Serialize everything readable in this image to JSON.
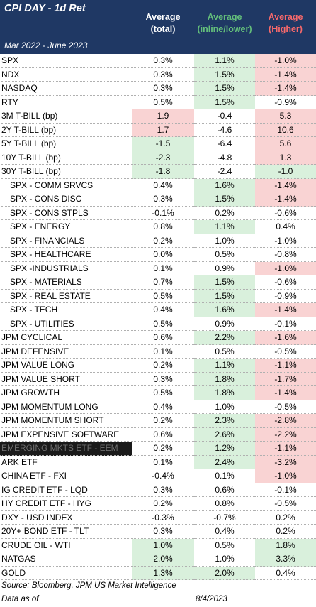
{
  "header": {
    "title": "CPI DAY - 1d Ret",
    "subtitle": "Mar 2022 - June 2023",
    "columns": [
      {
        "line1": "Average",
        "line2": "(total)"
      },
      {
        "line1": "Average",
        "line2": "(inline/lower)"
      },
      {
        "line1": "Average",
        "line2": "(Higher)"
      }
    ]
  },
  "colors": {
    "header_bg": "#1f3864",
    "green_fill": "#d9f0dc",
    "red_fill": "#f9d3d3",
    "green_text": "#63be7b",
    "red_text": "#f8696b"
  },
  "chart_data": {
    "type": "table",
    "title": "CPI DAY - 1d Ret",
    "subtitle": "Mar 2022 - June 2023",
    "columns": [
      "Average (total)",
      "Average (inline/lower)",
      "Average (Higher)"
    ],
    "rows": [
      {
        "label": "SPX",
        "total": "0.3%",
        "inline": "1.1%",
        "higher": "-1.0%",
        "fill": [
          "",
          "pos",
          "neg"
        ],
        "sub": false
      },
      {
        "label": "NDX",
        "total": "0.3%",
        "inline": "1.5%",
        "higher": "-1.4%",
        "fill": [
          "",
          "pos",
          "neg"
        ],
        "sub": false
      },
      {
        "label": "NASDAQ",
        "total": "0.3%",
        "inline": "1.5%",
        "higher": "-1.4%",
        "fill": [
          "",
          "pos",
          "neg"
        ],
        "sub": false
      },
      {
        "label": "RTY",
        "total": "0.5%",
        "inline": "1.5%",
        "higher": "-0.9%",
        "fill": [
          "",
          "pos",
          ""
        ],
        "sub": false
      },
      {
        "label": "3M T-BILL (bp)",
        "total": "1.9",
        "inline": "-0.4",
        "higher": "5.3",
        "fill": [
          "neg",
          "",
          "neg"
        ],
        "sub": false
      },
      {
        "label": "2Y T-BILL (bp)",
        "total": "1.7",
        "inline": "-4.6",
        "higher": "10.6",
        "fill": [
          "neg",
          "",
          "neg"
        ],
        "sub": false
      },
      {
        "label": "5Y T-BILL (bp)",
        "total": "-1.5",
        "inline": "-6.4",
        "higher": "5.6",
        "fill": [
          "pos",
          "",
          "neg"
        ],
        "sub": false
      },
      {
        "label": "10Y T-BILL (bp)",
        "total": "-2.3",
        "inline": "-4.8",
        "higher": "1.3",
        "fill": [
          "pos",
          "",
          "neg"
        ],
        "sub": false
      },
      {
        "label": "30Y T-BILL (bp)",
        "total": "-1.8",
        "inline": "-2.4",
        "higher": "-1.0",
        "fill": [
          "pos",
          "",
          "pos"
        ],
        "sub": false
      },
      {
        "label": "SPX - COMM SRVCS",
        "total": "0.4%",
        "inline": "1.6%",
        "higher": "-1.4%",
        "fill": [
          "",
          "pos",
          "neg"
        ],
        "sub": true
      },
      {
        "label": "SPX - CONS DISC",
        "total": "0.3%",
        "inline": "1.5%",
        "higher": "-1.4%",
        "fill": [
          "",
          "pos",
          "neg"
        ],
        "sub": true
      },
      {
        "label": "SPX - CONS STPLS",
        "total": "-0.1%",
        "inline": "0.2%",
        "higher": "-0.6%",
        "fill": [
          "",
          "",
          ""
        ],
        "sub": true
      },
      {
        "label": "SPX - ENERGY",
        "total": "0.8%",
        "inline": "1.1%",
        "higher": "0.4%",
        "fill": [
          "",
          "pos",
          ""
        ],
        "sub": true
      },
      {
        "label": "SPX - FINANCIALS",
        "total": "0.2%",
        "inline": "1.0%",
        "higher": "-1.0%",
        "fill": [
          "",
          "",
          ""
        ],
        "sub": true
      },
      {
        "label": "SPX - HEALTHCARE",
        "total": "0.0%",
        "inline": "0.5%",
        "higher": "-0.8%",
        "fill": [
          "",
          "",
          ""
        ],
        "sub": true
      },
      {
        "label": "SPX -INDUSTRIALS",
        "total": "0.1%",
        "inline": "0.9%",
        "higher": "-1.0%",
        "fill": [
          "",
          "",
          "neg"
        ],
        "sub": true
      },
      {
        "label": "SPX - MATERIALS",
        "total": "0.7%",
        "inline": "1.5%",
        "higher": "-0.6%",
        "fill": [
          "",
          "pos",
          ""
        ],
        "sub": true
      },
      {
        "label": "SPX - REAL ESTATE",
        "total": "0.5%",
        "inline": "1.5%",
        "higher": "-0.9%",
        "fill": [
          "",
          "pos",
          ""
        ],
        "sub": true
      },
      {
        "label": "SPX - TECH",
        "total": "0.4%",
        "inline": "1.6%",
        "higher": "-1.4%",
        "fill": [
          "",
          "pos",
          "neg"
        ],
        "sub": true
      },
      {
        "label": "SPX - UTILITIES",
        "total": "0.5%",
        "inline": "0.9%",
        "higher": "-0.1%",
        "fill": [
          "",
          "",
          ""
        ],
        "sub": true
      },
      {
        "label": "JPM CYCLICAL",
        "total": "0.6%",
        "inline": "2.2%",
        "higher": "-1.6%",
        "fill": [
          "",
          "pos",
          "neg"
        ],
        "sub": false
      },
      {
        "label": "JPM DEFENSIVE",
        "total": "0.1%",
        "inline": "0.5%",
        "higher": "-0.5%",
        "fill": [
          "",
          "",
          ""
        ],
        "sub": false
      },
      {
        "label": "JPM VALUE LONG",
        "total": "0.2%",
        "inline": "1.1%",
        "higher": "-1.1%",
        "fill": [
          "",
          "pos",
          "neg"
        ],
        "sub": false
      },
      {
        "label": "JPM VALUE SHORT",
        "total": "0.3%",
        "inline": "1.8%",
        "higher": "-1.7%",
        "fill": [
          "",
          "pos",
          "neg"
        ],
        "sub": false
      },
      {
        "label": "JPM GROWTH",
        "total": "0.5%",
        "inline": "1.8%",
        "higher": "-1.4%",
        "fill": [
          "",
          "pos",
          "neg"
        ],
        "sub": false
      },
      {
        "label": "JPM MOMENTUM LONG",
        "total": "0.4%",
        "inline": "1.0%",
        "higher": "-0.5%",
        "fill": [
          "",
          "",
          ""
        ],
        "sub": false
      },
      {
        "label": "JPM MOMENTUM SHORT",
        "total": "0.2%",
        "inline": "2.3%",
        "higher": "-2.8%",
        "fill": [
          "",
          "pos",
          "neg"
        ],
        "sub": false
      },
      {
        "label": "JPM EXPENSIVE SOFTWARE",
        "total": "0.6%",
        "inline": "2.6%",
        "higher": "-2.2%",
        "fill": [
          "",
          "pos",
          "neg"
        ],
        "sub": false
      },
      {
        "label": "EMERGING MKTS ETF - EEM",
        "total": "0.2%",
        "inline": "1.2%",
        "higher": "-1.1%",
        "fill": [
          "",
          "pos",
          "neg"
        ],
        "sub": false,
        "dark": true
      },
      {
        "label": "ARK ETF",
        "total": "0.1%",
        "inline": "2.4%",
        "higher": "-3.2%",
        "fill": [
          "",
          "pos",
          "neg"
        ],
        "sub": false
      },
      {
        "label": "CHINA ETF - FXI",
        "total": "-0.4%",
        "inline": "0.1%",
        "higher": "-1.0%",
        "fill": [
          "",
          "",
          "neg"
        ],
        "sub": false
      },
      {
        "label": "IG CREDIT ETF - LQD",
        "total": "0.3%",
        "inline": "0.6%",
        "higher": "-0.1%",
        "fill": [
          "",
          "",
          ""
        ],
        "sub": false
      },
      {
        "label": "HY CREDIT ETF - HYG",
        "total": "0.2%",
        "inline": "0.8%",
        "higher": "-0.5%",
        "fill": [
          "",
          "",
          ""
        ],
        "sub": false
      },
      {
        "label": "DXY - USD INDEX",
        "total": "-0.3%",
        "inline": "-0.7%",
        "higher": "0.2%",
        "fill": [
          "",
          "",
          ""
        ],
        "sub": false
      },
      {
        "label": "20Y+ BOND ETF - TLT",
        "total": "0.3%",
        "inline": "0.4%",
        "higher": "0.2%",
        "fill": [
          "",
          "",
          ""
        ],
        "sub": false
      },
      {
        "label": "CRUDE OIL - WTI",
        "total": "1.0%",
        "inline": "0.5%",
        "higher": "1.8%",
        "fill": [
          "pos",
          "",
          "pos"
        ],
        "sub": false
      },
      {
        "label": "NATGAS",
        "total": "2.0%",
        "inline": "1.0%",
        "higher": "3.3%",
        "fill": [
          "pos",
          "",
          "pos"
        ],
        "sub": false
      },
      {
        "label": "GOLD",
        "total": "1.3%",
        "inline": "2.0%",
        "higher": "0.4%",
        "fill": [
          "pos",
          "pos",
          ""
        ],
        "sub": false
      }
    ]
  },
  "footer": {
    "source": "Source: Bloomberg, JPM US Market Intelligence",
    "as_of": "Data as of",
    "date": "8/4/2023"
  }
}
